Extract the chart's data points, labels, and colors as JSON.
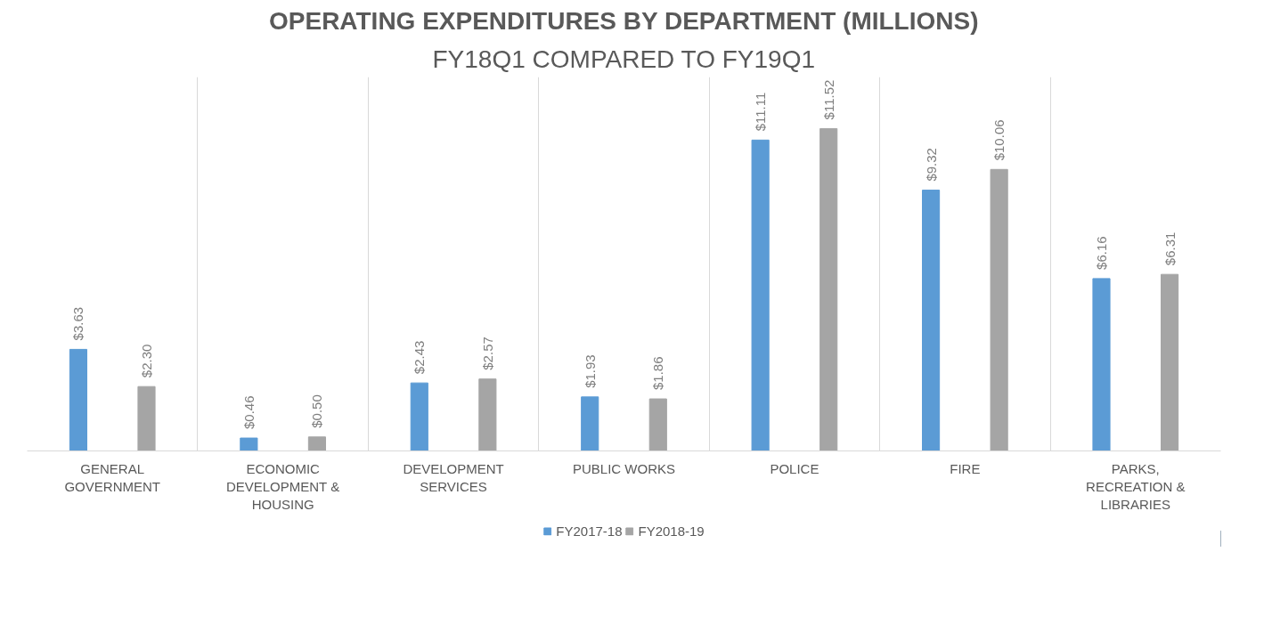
{
  "chart_data": {
    "type": "bar",
    "title": "OPERATING EXPENDITURES BY DEPARTMENT (MILLIONS)",
    "subtitle": "FY18Q1 COMPARED TO FY19Q1",
    "categories": [
      "GENERAL\nGOVERNMENT",
      "ECONOMIC\nDEVELOPMENT &\nHOUSING",
      "DEVELOPMENT\nSERVICES",
      "PUBLIC WORKS",
      "POLICE",
      "FIRE",
      "PARKS,\nRECREATION &\nLIBRARIES"
    ],
    "series": [
      {
        "name": "FY2017-18",
        "color": "#5b9bd5",
        "values": [
          3.63,
          0.46,
          2.43,
          1.93,
          11.11,
          9.32,
          6.16
        ],
        "value_labels": [
          "$3.63",
          "$0.46",
          "$2.43",
          "$1.93",
          "$11.11",
          "$9.32",
          "$6.16"
        ]
      },
      {
        "name": "FY2018-19",
        "color": "#a5a5a5",
        "values": [
          2.3,
          0.5,
          2.57,
          1.86,
          11.52,
          10.06,
          6.31
        ],
        "value_labels": [
          "$2.30",
          "$0.50",
          "$2.57",
          "$1.86",
          "$11.52",
          "$10.06",
          "$6.31"
        ]
      }
    ],
    "grid": "x",
    "legend": "bottom"
  }
}
